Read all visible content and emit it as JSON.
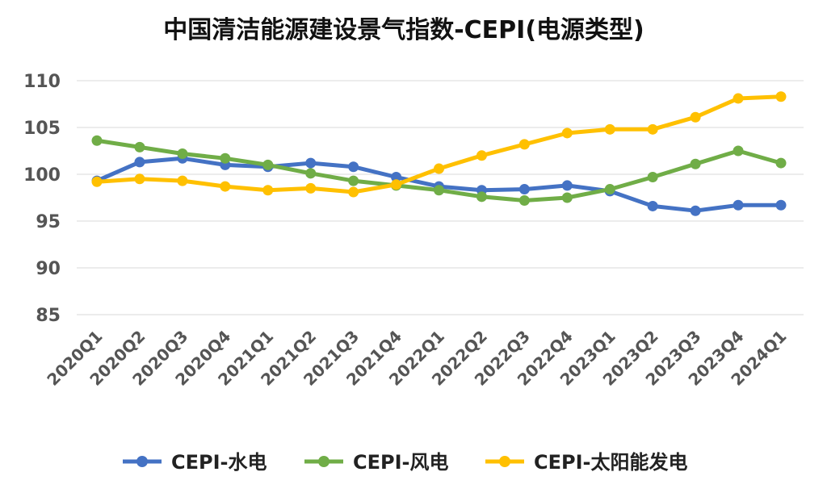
{
  "chart_data": {
    "type": "line",
    "title": "中国清洁能源建设景气指数-CEPI(电源类型)",
    "xlabel": "",
    "ylabel": "",
    "ylim": [
      85,
      110
    ],
    "yticks": [
      "110",
      "105",
      "100",
      "95",
      "90",
      "85"
    ],
    "categories": [
      "2020Q1",
      "2020Q2",
      "2020Q3",
      "2020Q4",
      "2021Q1",
      "2021Q2",
      "2021Q3",
      "2021Q4",
      "2022Q1",
      "2022Q2",
      "2022Q3",
      "2022Q4",
      "2023Q1",
      "2023Q2",
      "2023Q3",
      "2023Q4",
      "2024Q1"
    ],
    "grid": true,
    "legend_position": "bottom",
    "series": [
      {
        "name": "CEPI-水电",
        "color": "#4472C4",
        "values": [
          99.3,
          101.3,
          101.7,
          101.0,
          100.8,
          101.2,
          100.8,
          99.7,
          98.7,
          98.3,
          98.4,
          98.8,
          98.2,
          96.6,
          96.1,
          96.7,
          96.7
        ]
      },
      {
        "name": "CEPI-风电",
        "color": "#70AD47",
        "values": [
          103.6,
          102.9,
          102.2,
          101.7,
          101.0,
          100.1,
          99.3,
          98.8,
          98.3,
          97.6,
          97.2,
          97.5,
          98.4,
          99.7,
          101.1,
          102.5,
          101.2
        ]
      },
      {
        "name": "CEPI-太阳能发电",
        "color": "#FFC000",
        "values": [
          99.2,
          99.5,
          99.3,
          98.7,
          98.3,
          98.5,
          98.1,
          98.9,
          100.6,
          102.0,
          103.2,
          104.4,
          104.8,
          104.8,
          106.1,
          108.1,
          108.3
        ]
      }
    ]
  }
}
